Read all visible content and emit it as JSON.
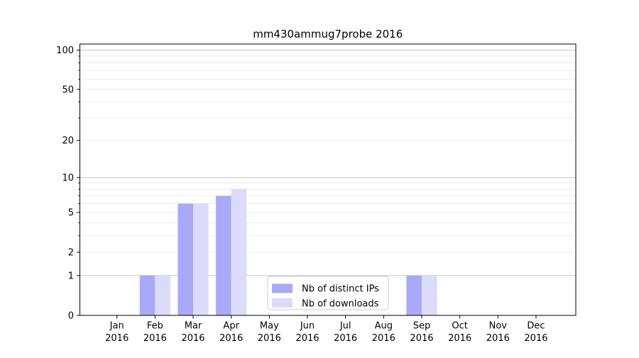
{
  "chart_data": {
    "type": "bar",
    "title": "mm430ammug7probe 2016",
    "categories": [
      "Jan",
      "Feb",
      "Mar",
      "Apr",
      "May",
      "Jun",
      "Jul",
      "Aug",
      "Sep",
      "Oct",
      "Nov",
      "Dec"
    ],
    "x_tick_second_line": "2016",
    "series": [
      {
        "name": "Nb of distinct IPs",
        "color": "#a9a9f9",
        "values": [
          0,
          1,
          6,
          7,
          0,
          0,
          0,
          0,
          1,
          0,
          0,
          0
        ]
      },
      {
        "name": "Nb of downloads",
        "color": "#dbdbfa",
        "values": [
          0,
          1,
          6,
          8,
          0,
          0,
          0,
          0,
          1,
          0,
          0,
          0
        ]
      }
    ],
    "yscale": "log10(1+value)",
    "ylim": [
      0,
      110
    ],
    "ytick_values": [
      0,
      1,
      2,
      5,
      10,
      20,
      50,
      100
    ],
    "ytick_labels": [
      "0",
      "1",
      "2",
      "5",
      "10",
      "20",
      "50",
      "100"
    ],
    "grid": {
      "major_values": [
        1,
        10,
        100
      ],
      "minor_values": [
        2,
        3,
        4,
        5,
        6,
        7,
        8,
        9,
        20,
        30,
        40,
        50,
        60,
        70,
        80,
        90
      ],
      "major_color": "#c3c3c3",
      "minor_color": "#ebebeb"
    },
    "legend": {
      "location": "lower center",
      "border_color": "#cccccc"
    },
    "colors": {
      "background": "#ffffff",
      "axis": "#000000",
      "text": "#000000"
    }
  }
}
